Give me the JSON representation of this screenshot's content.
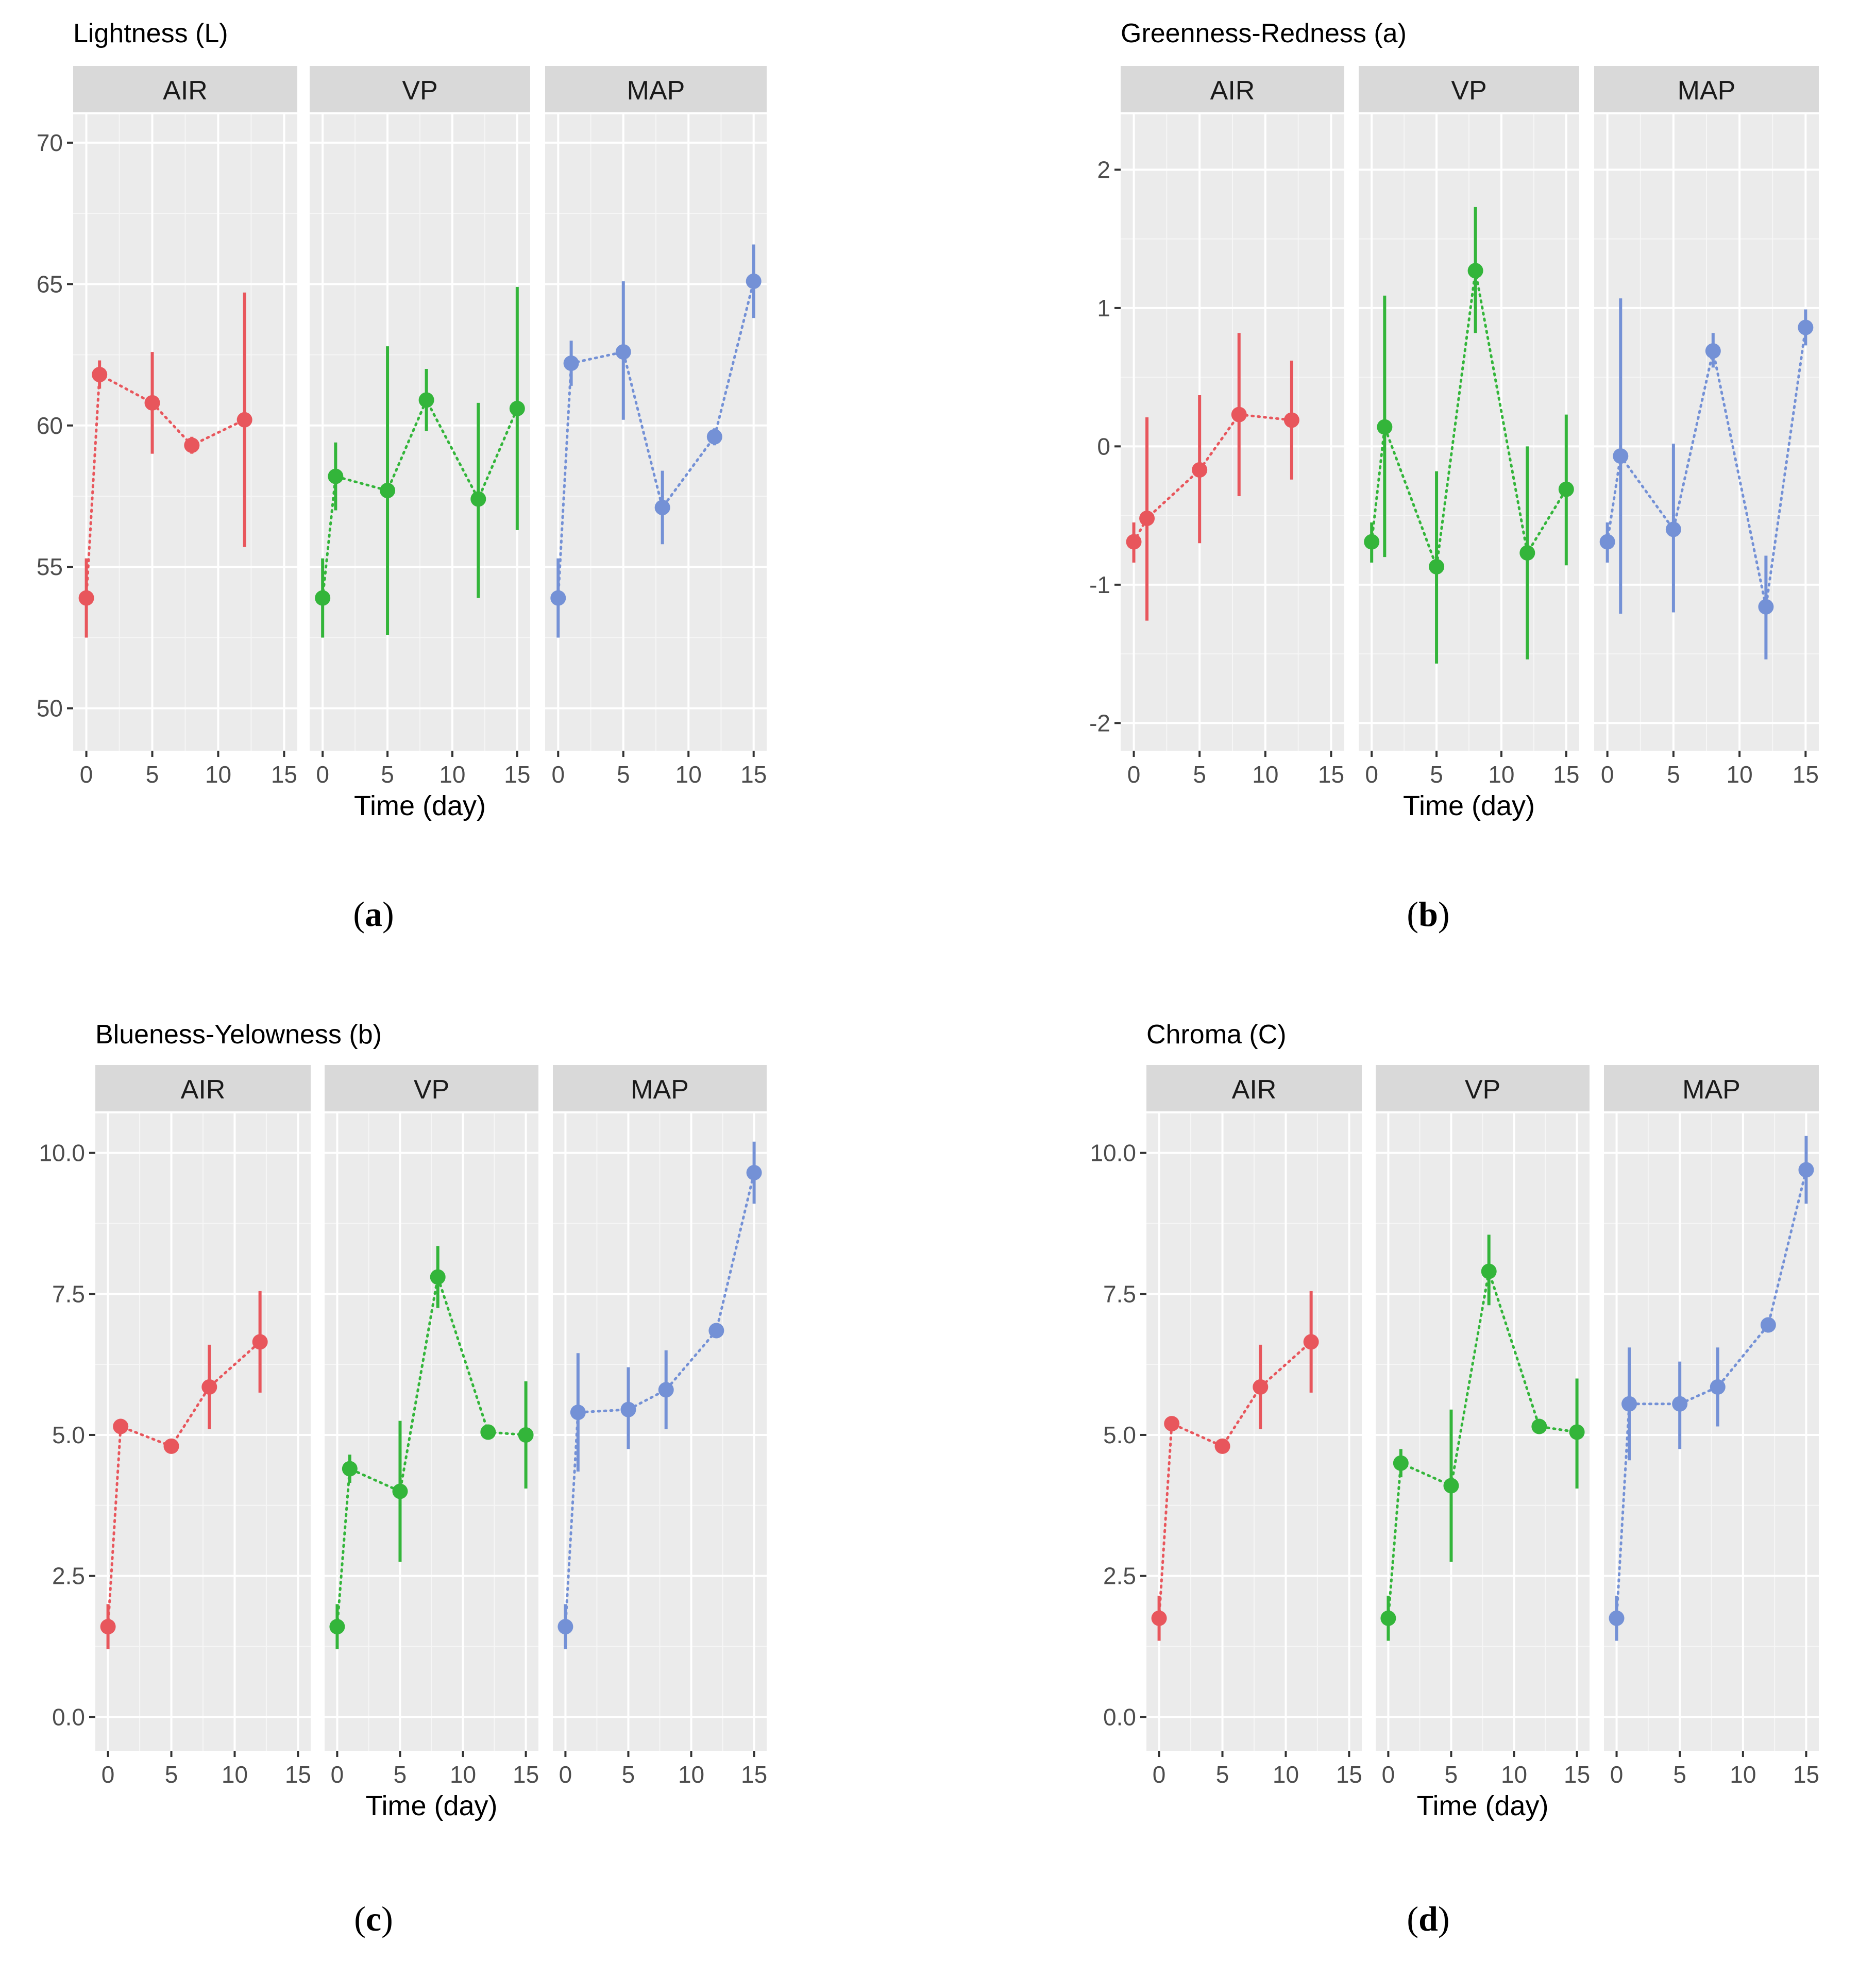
{
  "x_axis_label": "Time (day)",
  "facet_colors": {
    "AIR": "#e8565c",
    "VP": "#33b53a",
    "MAP": "#7491d6"
  },
  "panel_background": "#ebebeb",
  "strip_background": "#d9d9d9",
  "captions": [
    {
      "open": "(",
      "letter": "a",
      "close": ")"
    },
    {
      "open": "(",
      "letter": "b",
      "close": ")"
    },
    {
      "open": "(",
      "letter": "c",
      "close": ")"
    },
    {
      "open": "(",
      "letter": "d",
      "close": ")"
    }
  ],
  "chart_data": [
    {
      "type": "scatter",
      "title": "Lightness (L)",
      "xlabel": "Time (day)",
      "ylabel": "",
      "xlim": [
        -1,
        16
      ],
      "xticks": [
        0,
        5,
        10,
        15
      ],
      "ylim": [
        48.5,
        71
      ],
      "yticks": [
        50,
        55,
        60,
        65,
        70
      ],
      "ytick_labels": [
        "50",
        "55",
        "60",
        "65",
        "70"
      ],
      "facets": [
        {
          "name": "AIR",
          "x": [
            0,
            1,
            5,
            8,
            12
          ],
          "y": [
            53.9,
            61.8,
            60.8,
            59.3,
            60.2
          ],
          "ymin": [
            52.5,
            61.3,
            59.0,
            59.0,
            55.7
          ],
          "ymax": [
            55.3,
            62.3,
            62.6,
            59.6,
            64.7
          ]
        },
        {
          "name": "VP",
          "x": [
            0,
            1,
            5,
            8,
            12,
            15
          ],
          "y": [
            53.9,
            58.2,
            57.7,
            60.9,
            57.4,
            60.6
          ],
          "ymin": [
            52.5,
            57.0,
            52.6,
            59.8,
            53.9,
            56.3
          ],
          "ymax": [
            55.3,
            59.4,
            62.8,
            62.0,
            60.8,
            64.9
          ]
        },
        {
          "name": "MAP",
          "x": [
            0,
            1,
            5,
            8,
            12,
            15
          ],
          "y": [
            53.9,
            62.2,
            62.6,
            57.1,
            59.6,
            65.1
          ],
          "ymin": [
            52.5,
            61.4,
            60.2,
            55.8,
            59.3,
            63.8
          ],
          "ymax": [
            55.3,
            63.0,
            65.1,
            58.4,
            59.9,
            66.4
          ]
        }
      ]
    },
    {
      "type": "scatter",
      "title": "Greenness-Redness (a)",
      "xlabel": "Time (day)",
      "ylabel": "",
      "xlim": [
        -1,
        16
      ],
      "xticks": [
        0,
        5,
        10,
        15
      ],
      "ylim": [
        -2.2,
        2.4
      ],
      "yticks": [
        -2,
        -1,
        0,
        1,
        2
      ],
      "ytick_labels": [
        "-2",
        "-1",
        "0",
        "1",
        "2"
      ],
      "facets": [
        {
          "name": "AIR",
          "x": [
            0,
            1,
            5,
            8,
            12
          ],
          "y": [
            -0.69,
            -0.52,
            -0.17,
            0.23,
            0.19
          ],
          "ymin": [
            -0.84,
            -1.26,
            -0.7,
            -0.36,
            -0.24
          ],
          "ymax": [
            -0.55,
            0.21,
            0.37,
            0.82,
            0.62
          ]
        },
        {
          "name": "VP",
          "x": [
            0,
            1,
            5,
            8,
            12,
            15
          ],
          "y": [
            -0.69,
            0.14,
            -0.87,
            1.27,
            -0.77,
            -0.31
          ],
          "ymin": [
            -0.84,
            -0.8,
            -1.57,
            0.82,
            -1.54,
            -0.86
          ],
          "ymax": [
            -0.55,
            1.09,
            -0.18,
            1.73,
            0.0,
            0.23
          ]
        },
        {
          "name": "MAP",
          "x": [
            0,
            1,
            5,
            8,
            12,
            15
          ],
          "y": [
            -0.69,
            -0.07,
            -0.6,
            0.69,
            -1.16,
            0.86
          ],
          "ymin": [
            -0.84,
            -1.21,
            -1.2,
            0.57,
            -1.54,
            0.73
          ],
          "ymax": [
            -0.55,
            1.07,
            0.02,
            0.82,
            -0.79,
            0.99
          ]
        }
      ]
    },
    {
      "type": "scatter",
      "title": "Blueness-Yelowness (b)",
      "xlabel": "Time (day)",
      "ylabel": "",
      "xlim": [
        -1,
        16
      ],
      "xticks": [
        0,
        5,
        10,
        15
      ],
      "ylim": [
        -0.6,
        10.7
      ],
      "yticks": [
        0,
        2.5,
        5,
        7.5,
        10
      ],
      "ytick_labels": [
        "0.0",
        "2.5",
        "5.0",
        "7.5",
        "10.0"
      ],
      "facets": [
        {
          "name": "AIR",
          "x": [
            0,
            1,
            5,
            8,
            12
          ],
          "y": [
            1.6,
            5.15,
            4.8,
            5.85,
            6.65
          ],
          "ymin": [
            1.2,
            5.05,
            4.7,
            5.1,
            5.75
          ],
          "ymax": [
            2.0,
            5.25,
            4.9,
            6.6,
            7.55
          ]
        },
        {
          "name": "VP",
          "x": [
            0,
            1,
            5,
            8,
            12,
            15
          ],
          "y": [
            1.6,
            4.4,
            4.0,
            7.8,
            5.05,
            5.0
          ],
          "ymin": [
            1.2,
            4.15,
            2.75,
            7.25,
            4.95,
            4.05
          ],
          "ymax": [
            2.0,
            4.65,
            5.25,
            8.35,
            5.15,
            5.95
          ]
        },
        {
          "name": "MAP",
          "x": [
            0,
            1,
            5,
            8,
            12,
            15
          ],
          "y": [
            1.6,
            5.4,
            5.45,
            5.8,
            6.85,
            9.65
          ],
          "ymin": [
            1.2,
            4.35,
            4.75,
            5.1,
            6.75,
            9.1
          ],
          "ymax": [
            2.0,
            6.45,
            6.2,
            6.5,
            6.95,
            10.2
          ]
        }
      ]
    },
    {
      "type": "scatter",
      "title": "Chroma (C)",
      "xlabel": "Time (day)",
      "ylabel": "",
      "xlim": [
        -1,
        16
      ],
      "xticks": [
        0,
        5,
        10,
        15
      ],
      "ylim": [
        -0.6,
        10.7
      ],
      "yticks": [
        0,
        2.5,
        5,
        7.5,
        10
      ],
      "ytick_labels": [
        "0.0",
        "2.5",
        "5.0",
        "7.5",
        "10.0"
      ],
      "facets": [
        {
          "name": "AIR",
          "x": [
            0,
            1,
            5,
            8,
            12
          ],
          "y": [
            1.75,
            5.2,
            4.8,
            5.85,
            6.65
          ],
          "ymin": [
            1.35,
            5.1,
            4.7,
            5.1,
            5.75
          ],
          "ymax": [
            2.15,
            5.3,
            4.9,
            6.6,
            7.55
          ]
        },
        {
          "name": "VP",
          "x": [
            0,
            1,
            5,
            8,
            12,
            15
          ],
          "y": [
            1.75,
            4.5,
            4.1,
            7.9,
            5.15,
            5.05
          ],
          "ymin": [
            1.35,
            4.25,
            2.75,
            7.3,
            5.05,
            4.05
          ],
          "ymax": [
            2.15,
            4.75,
            5.45,
            8.55,
            5.25,
            6.0
          ]
        },
        {
          "name": "MAP",
          "x": [
            0,
            1,
            5,
            8,
            12,
            15
          ],
          "y": [
            1.75,
            5.55,
            5.55,
            5.85,
            6.95,
            9.7
          ],
          "ymin": [
            1.35,
            4.55,
            4.75,
            5.15,
            6.85,
            9.1
          ],
          "ymax": [
            2.15,
            6.55,
            6.3,
            6.55,
            7.05,
            10.3
          ]
        }
      ]
    }
  ]
}
